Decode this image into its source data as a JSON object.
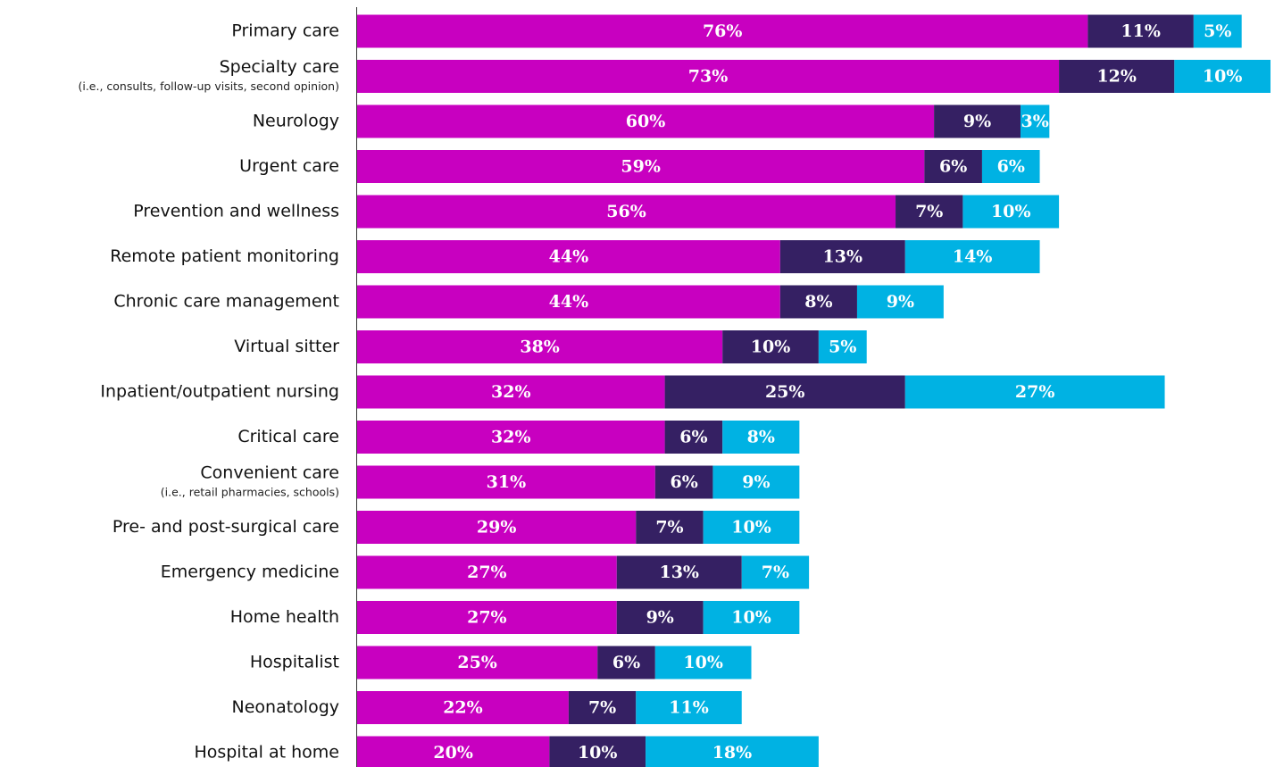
{
  "chart_data": {
    "type": "stacked-barh",
    "categories": [
      "Primary care",
      "Specialty care",
      "Neurology",
      "Urgent care",
      "Prevention and wellness",
      "Remote patient monitoring",
      "Chronic care management",
      "Virtual sitter",
      "Inpatient/outpatient nursing",
      "Critical care",
      "Convenient care",
      "Pre- and post-surgical care",
      "Emergency medicine",
      "Home health",
      "Hospitalist",
      "Neonatology",
      "Hospital at home"
    ],
    "category_notes": [
      null,
      "(i.e., consults, follow-up visits, second opinion)",
      null,
      null,
      null,
      null,
      null,
      null,
      null,
      null,
      "(i.e., retail pharmacies, schools)",
      null,
      null,
      null,
      null,
      null,
      null
    ],
    "series": [
      {
        "color": "#c800c0",
        "values": [
          76,
          73,
          60,
          59,
          56,
          44,
          44,
          38,
          32,
          32,
          31,
          29,
          27,
          27,
          25,
          22,
          20
        ],
        "value_labels": [
          "76%",
          "73%",
          "60%",
          "59%",
          "56%",
          "44%",
          "44%",
          "38%",
          "32%",
          "32%",
          "31%",
          "29%",
          "27%",
          "27%",
          "25%",
          "22%",
          "20%"
        ]
      },
      {
        "color": "#352063",
        "values": [
          11,
          12,
          9,
          6,
          7,
          13,
          8,
          10,
          25,
          6,
          6,
          7,
          13,
          9,
          6,
          7,
          10
        ],
        "value_labels": [
          "11%",
          "12%",
          "9%",
          "6%",
          "7%",
          "13%",
          "8%",
          "10%",
          "25%",
          "6%",
          "6%",
          "7%",
          "13%",
          "9%",
          "6%",
          "7%",
          "10%"
        ]
      },
      {
        "color": "#00b2e3",
        "values": [
          5,
          10,
          3,
          6,
          10,
          14,
          9,
          5,
          27,
          8,
          9,
          10,
          7,
          10,
          10,
          11,
          18
        ],
        "value_labels": [
          "5%",
          "10%",
          "3%",
          "6%",
          "10%",
          "14%",
          "9%",
          "5%",
          "27%",
          "8%",
          "9%",
          "10%",
          "7%",
          "10%",
          "10%",
          "11%",
          "18%"
        ]
      }
    ]
  }
}
